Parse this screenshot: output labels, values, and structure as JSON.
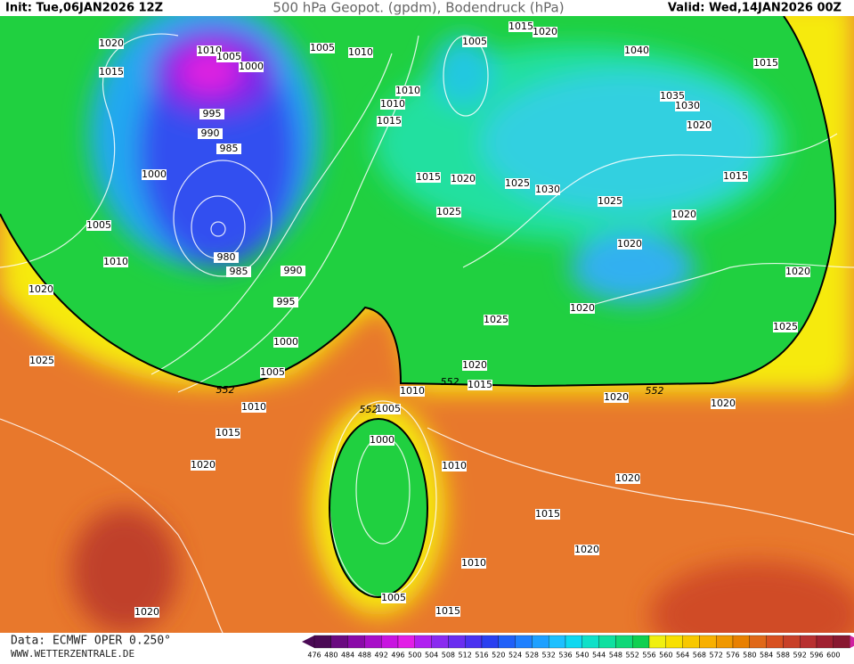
{
  "header": {
    "init": "Init: Tue,06JAN2026 12Z",
    "title": "500 hPa Geopot. (gpdm), Bodendruck (hPa)",
    "valid": "Valid: Wed,14JAN2026 00Z"
  },
  "map": {
    "isobar_labels": [
      1020,
      1015,
      1010,
      1005,
      1000,
      1005,
      1010,
      1005,
      1015,
      1020,
      1040,
      1015,
      1010,
      1010,
      1015,
      1035,
      1030,
      1020,
      995,
      990,
      985,
      1000,
      1015,
      1020,
      1025,
      1030,
      1025,
      1015,
      1020,
      1005,
      1025,
      1020,
      980,
      985,
      990,
      1010,
      1020,
      995,
      1020,
      1020,
      1025,
      1025,
      1000,
      1025,
      1005,
      1020,
      1015,
      1010,
      1020,
      1020,
      1010,
      1005,
      1015,
      1000,
      1020,
      1010,
      1020,
      1015,
      1020,
      1010,
      1005,
      1015,
      1020
    ],
    "contour_labels": [
      552,
      552,
      552,
      552
    ]
  },
  "footer": {
    "data": "Data: ECMWF OPER 0.250°",
    "site": "WWW.WETTERZENTRALE.DE"
  },
  "colorbar": {
    "levels": [
      476,
      480,
      484,
      488,
      492,
      496,
      500,
      504,
      508,
      512,
      516,
      520,
      524,
      528,
      532,
      536,
      540,
      544,
      548,
      552,
      556,
      560,
      564,
      568,
      572,
      576,
      580,
      584,
      588,
      592,
      596,
      600
    ],
    "colors": [
      "#4b0a55",
      "#6a0a80",
      "#8a0aa8",
      "#a80fc8",
      "#c814e0",
      "#e21ee6",
      "#b020f0",
      "#8a2af0",
      "#6a2ef0",
      "#4a32f0",
      "#2a40f0",
      "#2060f8",
      "#1f80ff",
      "#1ea0ff",
      "#1ec0ff",
      "#10d8f0",
      "#10e0c8",
      "#10e0a0",
      "#10d878",
      "#10d050",
      "#f0f010",
      "#f8e000",
      "#f8c800",
      "#f8b000",
      "#f09800",
      "#e88000",
      "#e06818",
      "#d85020",
      "#c84028",
      "#b83030",
      "#a02030",
      "#881830"
    ]
  }
}
